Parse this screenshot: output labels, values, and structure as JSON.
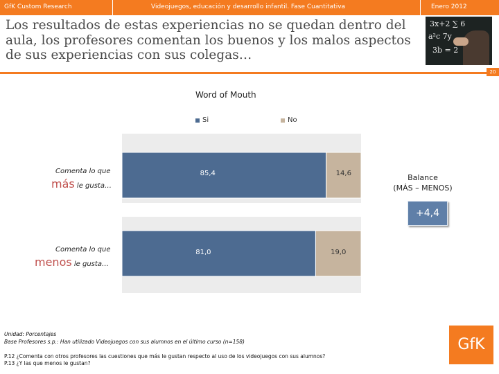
{
  "header": {
    "left": "GfK Custom Research",
    "center": "Videojuegos, educación y desarrollo infantil. Fase Cuantitativa",
    "right": "Enero 2012"
  },
  "slide_title": "Los resultados de estas experiencias no se quedan dentro del aula, los profesores comentan los buenos y los malos aspectos de sus experiencias con sus colegas…",
  "page_number": "20",
  "chart_data": {
    "type": "bar",
    "orientation": "horizontal",
    "stacked": true,
    "title": "Word of Mouth",
    "legend": [
      {
        "name": "Si",
        "color": "#4d6b91"
      },
      {
        "name": "No",
        "color": "#c6b49e"
      }
    ],
    "categories": [
      {
        "prefix": "Comenta lo que",
        "emphasis": "más",
        "suffix": "le gusta…"
      },
      {
        "prefix": "Comenta lo que",
        "emphasis": "menos",
        "suffix": "le gusta…"
      }
    ],
    "series": [
      {
        "name": "Si",
        "values": [
          85.4,
          81.0
        ],
        "labels": [
          "85,4",
          "81,0"
        ]
      },
      {
        "name": "No",
        "values": [
          14.6,
          19.0
        ],
        "labels": [
          "14,6",
          "19,0"
        ]
      }
    ],
    "xlim": [
      0,
      100
    ]
  },
  "balance": {
    "label_line1": "Balance",
    "label_line2": "(MÁS – MENOS)",
    "value": "+4,4"
  },
  "footnotes": {
    "unit": "Unidad: Porcentajes",
    "base": "Base Profesores s.p.: Han utilizado Videojuegos con sus alumnos en el último curso (n=158)",
    "p12": "P.12 ¿Comenta con otros profesores las cuestiones que más le gustan respecto al uso de los videojuegos con sus alumnos?",
    "p13": "P.13 ¿Y las que menos le gustan?"
  },
  "logo_text": "GfK"
}
